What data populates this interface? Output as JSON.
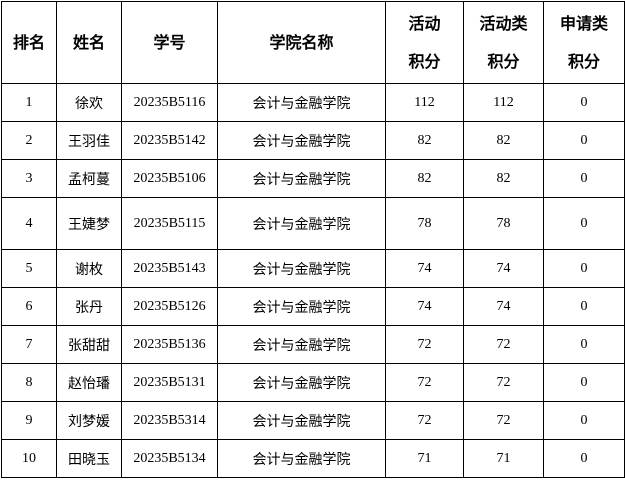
{
  "headers": [
    "排名",
    "姓名",
    "学号",
    "学院名称",
    [
      "活动",
      "积分"
    ],
    [
      "活动类",
      "积分"
    ],
    [
      "申请类",
      "积分"
    ]
  ],
  "rows": [
    [
      "1",
      "徐欢",
      "20235B5116",
      "会计与金融学院",
      "112",
      "112",
      "0"
    ],
    [
      "2",
      "王羽佳",
      "20235B5142",
      "会计与金融学院",
      "82",
      "82",
      "0"
    ],
    [
      "3",
      "孟柯蔓",
      "20235B5106",
      "会计与金融学院",
      "82",
      "82",
      "0"
    ],
    [
      "4",
      "王婕梦",
      "20235B5115",
      "会计与金融学院",
      "78",
      "78",
      "0"
    ],
    [
      "5",
      "谢枚",
      "20235B5143",
      "会计与金融学院",
      "74",
      "74",
      "0"
    ],
    [
      "6",
      "张丹",
      "20235B5126",
      "会计与金融学院",
      "74",
      "74",
      "0"
    ],
    [
      "7",
      "张甜甜",
      "20235B5136",
      "会计与金融学院",
      "72",
      "72",
      "0"
    ],
    [
      "8",
      "赵怡璠",
      "20235B5131",
      "会计与金融学院",
      "72",
      "72",
      "0"
    ],
    [
      "9",
      "刘梦媛",
      "20235B5314",
      "会计与金融学院",
      "72",
      "72",
      "0"
    ],
    [
      "10",
      "田晓玉",
      "20235B5134",
      "会计与金融学院",
      "71",
      "71",
      "0"
    ]
  ]
}
